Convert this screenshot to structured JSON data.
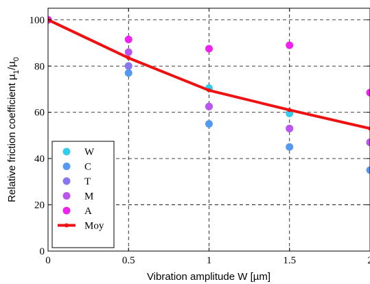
{
  "chart_data": {
    "type": "scatter",
    "xlabel": "Vibration amplitude W [µm]",
    "ylabel_parts": [
      "Relative friction coefficient µ",
      "1",
      "/µ",
      "0"
    ],
    "xlim": [
      0,
      2
    ],
    "ylim": [
      0,
      105
    ],
    "x_ticks": [
      "0",
      "0.5",
      "1",
      "1.5",
      "2"
    ],
    "y_ticks": [
      "0",
      "20",
      "40",
      "60",
      "80",
      "100"
    ],
    "x_tick_values": [
      0,
      0.5,
      1,
      1.5,
      2
    ],
    "y_tick_values": [
      0,
      20,
      40,
      60,
      80,
      100
    ],
    "grid": true,
    "legend_position": "lower-left",
    "series": [
      {
        "name": "W",
        "color": "#33ccee",
        "kind": "points",
        "x": [
          0,
          0.5,
          1,
          1.5,
          2
        ],
        "y": [
          100,
          80,
          70.5,
          59.5,
          47
        ]
      },
      {
        "name": "C",
        "color": "#5599ee",
        "kind": "points",
        "x": [
          0,
          0.5,
          1,
          1.5,
          2
        ],
        "y": [
          100,
          77,
          55,
          45,
          35
        ]
      },
      {
        "name": "T",
        "color": "#8877ee",
        "kind": "points",
        "x": [
          0,
          0.5,
          1,
          1.5,
          2
        ],
        "y": [
          100,
          80,
          62.5,
          53,
          47
        ]
      },
      {
        "name": "M",
        "color": "#bb55ee",
        "kind": "points",
        "x": [
          0,
          0.5,
          1,
          1.5,
          2
        ],
        "y": [
          100,
          86,
          62.5,
          53,
          47
        ]
      },
      {
        "name": "A",
        "color": "#ee22ee",
        "kind": "points",
        "x": [
          0,
          0.5,
          1,
          1.5,
          2
        ],
        "y": [
          100,
          91.5,
          87.5,
          89,
          68.5
        ]
      },
      {
        "name": "Moy",
        "color": "#ee1111",
        "kind": "line",
        "x": [
          0,
          0.5,
          1,
          1.5,
          2
        ],
        "y": [
          100,
          83.5,
          69.5,
          61,
          53
        ]
      }
    ]
  }
}
